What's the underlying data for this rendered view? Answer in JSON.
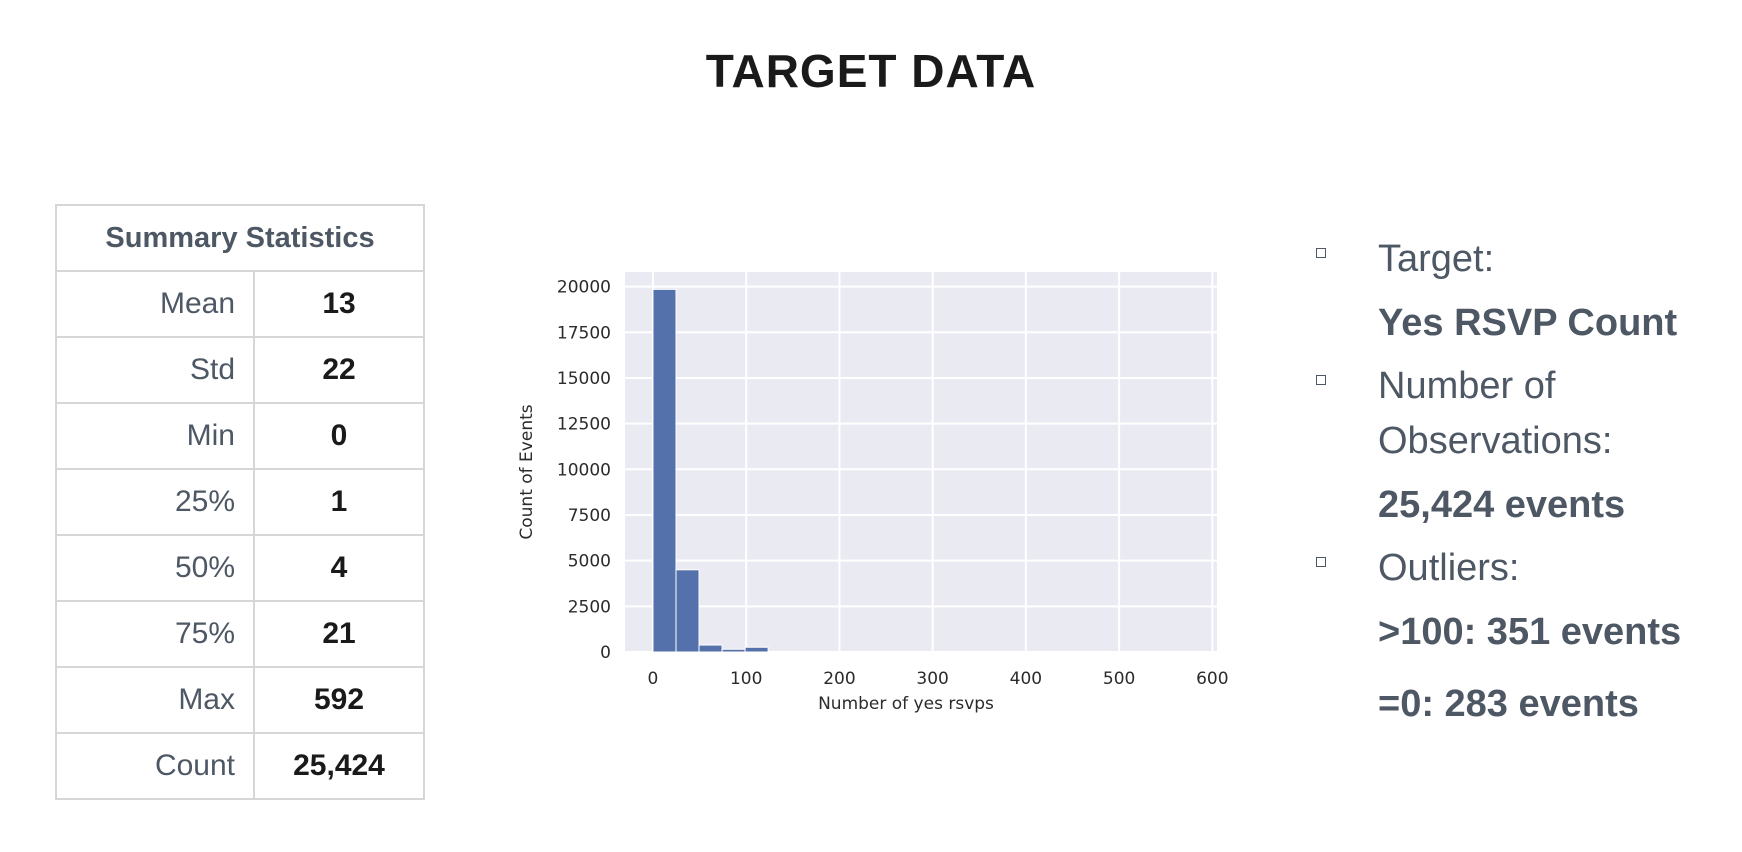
{
  "page": {
    "title": "TARGET DATA"
  },
  "summary": {
    "header": "Summary Statistics",
    "rows": [
      {
        "label": "Mean",
        "value": "13"
      },
      {
        "label": "Std",
        "value": "22"
      },
      {
        "label": "Min",
        "value": "0"
      },
      {
        "label": "25%",
        "value": "1"
      },
      {
        "label": "50%",
        "value": "4"
      },
      {
        "label": "75%",
        "value": "21"
      },
      {
        "label": "Max",
        "value": "592"
      },
      {
        "label": "Count",
        "value": "25,424"
      }
    ]
  },
  "chart_data": {
    "type": "bar",
    "title": "",
    "xlabel": "Number of yes rsvps",
    "ylabel": "Count of Events",
    "xlim": [
      -30,
      605
    ],
    "ylim": [
      0,
      20800
    ],
    "x_ticks": [
      0,
      100,
      200,
      300,
      400,
      500,
      600
    ],
    "y_ticks": [
      0,
      2500,
      5000,
      7500,
      10000,
      12500,
      15000,
      17500,
      20000
    ],
    "bin_width": 24.7,
    "bins": [
      {
        "x0": 0,
        "x1": 24.7,
        "count": 19850
      },
      {
        "x0": 24.7,
        "x1": 49.4,
        "count": 4500
      },
      {
        "x0": 49.4,
        "x1": 74.1,
        "count": 380
      },
      {
        "x0": 74.1,
        "x1": 98.8,
        "count": 150
      },
      {
        "x0": 98.8,
        "x1": 123.5,
        "count": 260
      },
      {
        "x0": 123.5,
        "x1": 148.2,
        "count": 30
      },
      {
        "x0": 148.2,
        "x1": 172.9,
        "count": 15
      },
      {
        "x0": 172.9,
        "x1": 197.6,
        "count": 10
      }
    ],
    "grid": true,
    "colors": {
      "bar": "#5471ab",
      "background": "#eaeaf2",
      "grid": "#ffffff"
    }
  },
  "bullets": [
    {
      "label": "Target:",
      "values": [
        "Yes RSVP Count"
      ]
    },
    {
      "label": "Number of Observations:",
      "values": [
        "25,424 events"
      ]
    },
    {
      "label": "Outliers:",
      "values": [
        ">100:  351 events",
        "=0:  283 events"
      ]
    }
  ]
}
